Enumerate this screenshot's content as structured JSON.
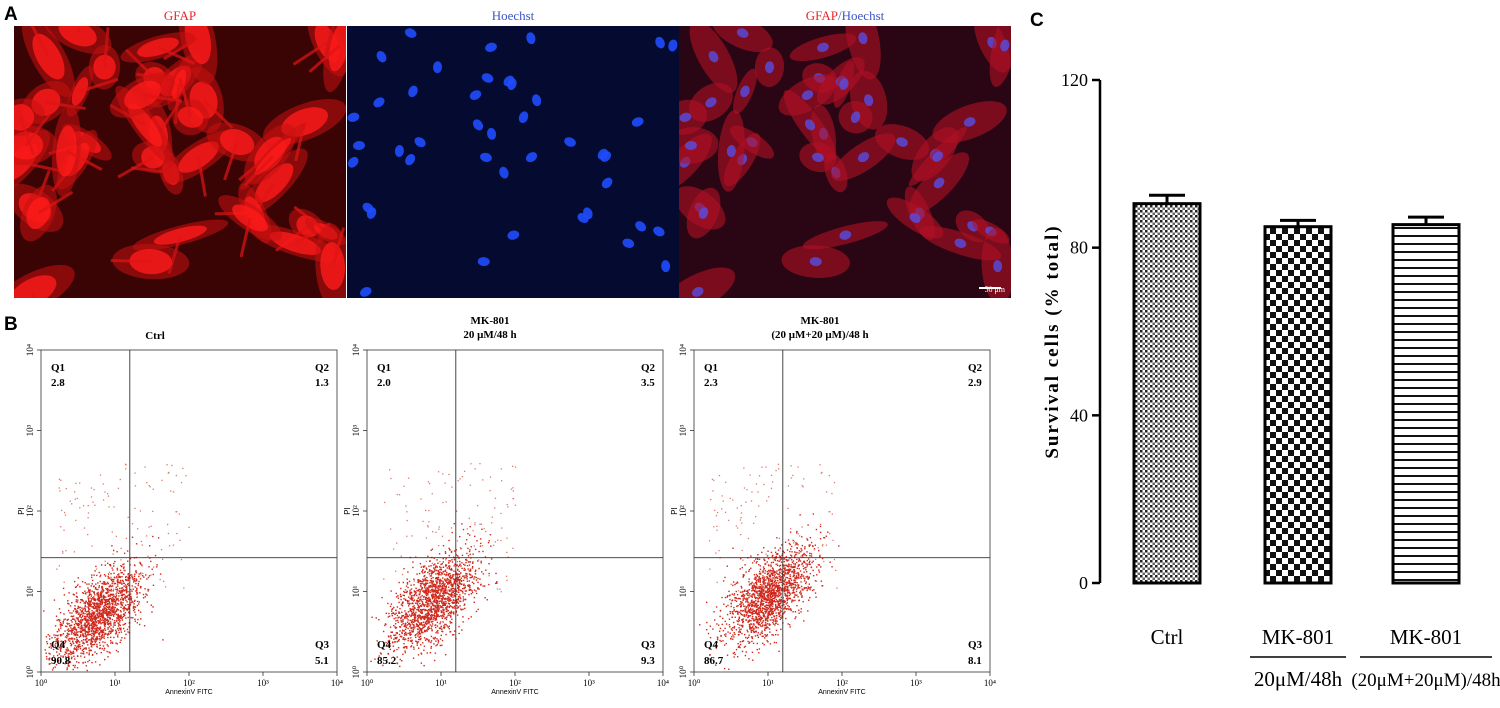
{
  "panel_a": {
    "letter": "A",
    "images": [
      {
        "title": "GFAP",
        "title_color": "#e8262b"
      },
      {
        "title": "Hoechst",
        "title_color": "#3b55c8"
      },
      {
        "title_part1": "GFAP",
        "title_sep": "/",
        "title_part2": "Hoechst"
      }
    ],
    "scale_bar": "50 μm"
  },
  "panel_b": {
    "letter": "B",
    "x_axis_label": "AnnexinV FITC",
    "y_axis_label": "PI",
    "x_ticks": [
      "10⁰",
      "10¹",
      "10²",
      "10³",
      "10⁴"
    ],
    "y_ticks": [
      "10⁰",
      "10¹",
      "10²",
      "10³",
      "10⁴"
    ],
    "plots": [
      {
        "title_line1": "Ctrl",
        "title_line2": "",
        "quadrants": {
          "Q1": "2.8",
          "Q2": "1.3",
          "Q3": "5.1",
          "Q4": "90.8"
        }
      },
      {
        "title_line1": "MK-801",
        "title_line2": "20 μM/48 h",
        "quadrants": {
          "Q1": "2.0",
          "Q2": "3.5",
          "Q3": "9.3",
          "Q4": "85.2"
        }
      },
      {
        "title_line1": "MK-801",
        "title_line2": "(20 μM+20 μM)/48 h",
        "quadrants": {
          "Q1": "2.3",
          "Q2": "2.9",
          "Q3": "8.1",
          "Q4": "86.7"
        }
      }
    ]
  },
  "panel_c": {
    "letter": "C"
  },
  "chart_data": {
    "type": "bar",
    "ylabel": "Survival cells (% total)",
    "ylim": [
      0,
      120
    ],
    "yticks": [
      0,
      40,
      80,
      120
    ],
    "categories": [
      {
        "line1": "Ctrl",
        "line2": ""
      },
      {
        "line1": "MK-801",
        "line2": "20μM/48h"
      },
      {
        "line1": "MK-801",
        "line2": "(20μM+20μM)/48h"
      }
    ],
    "values": [
      90.5,
      85.0,
      85.5
    ],
    "errors": [
      2.0,
      1.5,
      1.8
    ],
    "fill_patterns": [
      "dots",
      "checker",
      "horizontal-lines"
    ]
  }
}
